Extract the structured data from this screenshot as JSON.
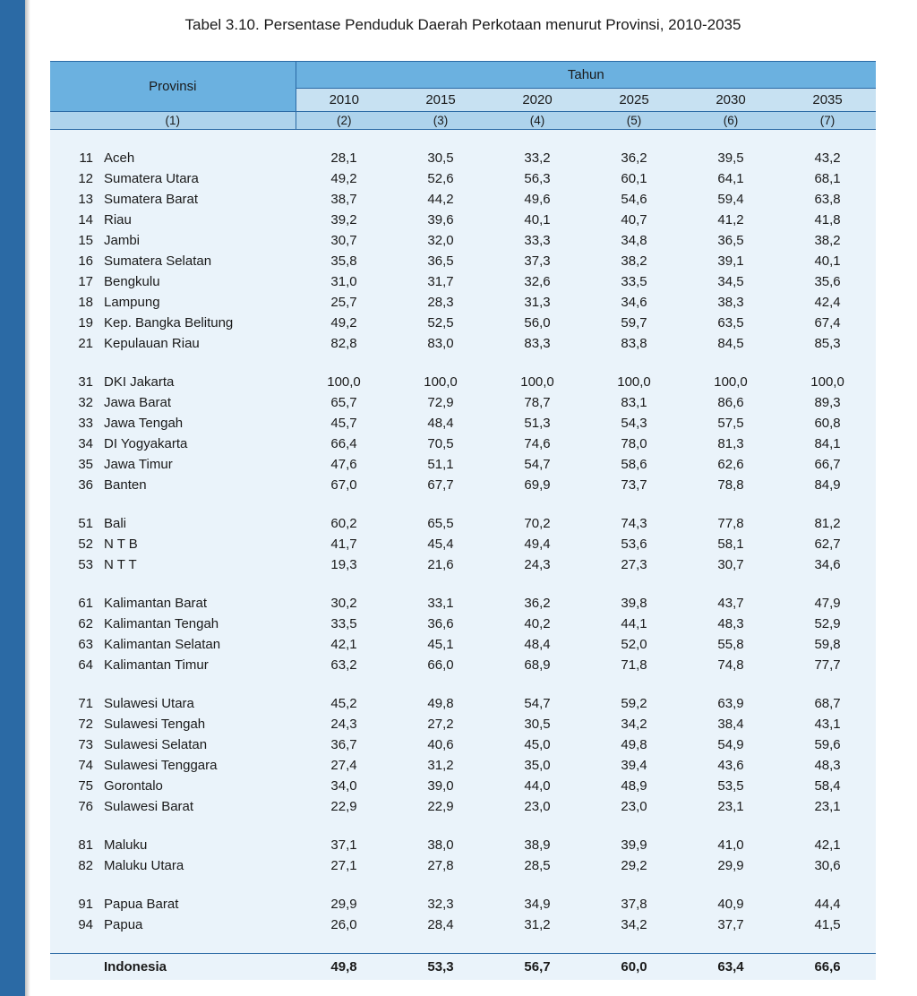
{
  "title": "Tabel 3.10. Persentase Penduduk Daerah Perkotaan menurut Provinsi, 2010-2035",
  "header": {
    "provinsi": "Provinsi",
    "tahun": "Tahun",
    "years": [
      "2010",
      "2015",
      "2020",
      "2025",
      "2030",
      "2035"
    ],
    "col_index": [
      "(1)",
      "(2)",
      "(3)",
      "(4)",
      "(5)",
      "(6)",
      "(7)"
    ]
  },
  "groups": [
    {
      "rows": [
        {
          "code": "11",
          "name": "Aceh",
          "vals": [
            "28,1",
            "30,5",
            "33,2",
            "36,2",
            "39,5",
            "43,2"
          ]
        },
        {
          "code": "12",
          "name": "Sumatera Utara",
          "vals": [
            "49,2",
            "52,6",
            "56,3",
            "60,1",
            "64,1",
            "68,1"
          ]
        },
        {
          "code": "13",
          "name": "Sumatera Barat",
          "vals": [
            "38,7",
            "44,2",
            "49,6",
            "54,6",
            "59,4",
            "63,8"
          ]
        },
        {
          "code": "14",
          "name": "Riau",
          "vals": [
            "39,2",
            "39,6",
            "40,1",
            "40,7",
            "41,2",
            "41,8"
          ]
        },
        {
          "code": "15",
          "name": "Jambi",
          "vals": [
            "30,7",
            "32,0",
            "33,3",
            "34,8",
            "36,5",
            "38,2"
          ]
        },
        {
          "code": "16",
          "name": "Sumatera Selatan",
          "vals": [
            "35,8",
            "36,5",
            "37,3",
            "38,2",
            "39,1",
            "40,1"
          ]
        },
        {
          "code": "17",
          "name": "Bengkulu",
          "vals": [
            "31,0",
            "31,7",
            "32,6",
            "33,5",
            "34,5",
            "35,6"
          ]
        },
        {
          "code": "18",
          "name": "Lampung",
          "vals": [
            "25,7",
            "28,3",
            "31,3",
            "34,6",
            "38,3",
            "42,4"
          ]
        },
        {
          "code": "19",
          "name": "Kep. Bangka Belitung",
          "vals": [
            "49,2",
            "52,5",
            "56,0",
            "59,7",
            "63,5",
            "67,4"
          ]
        },
        {
          "code": "21",
          "name": "Kepulauan Riau",
          "vals": [
            "82,8",
            "83,0",
            "83,3",
            "83,8",
            "84,5",
            "85,3"
          ]
        }
      ]
    },
    {
      "rows": [
        {
          "code": "31",
          "name": "DKI Jakarta",
          "vals": [
            "100,0",
            "100,0",
            "100,0",
            "100,0",
            "100,0",
            "100,0"
          ]
        },
        {
          "code": "32",
          "name": "Jawa Barat",
          "vals": [
            "65,7",
            "72,9",
            "78,7",
            "83,1",
            "86,6",
            "89,3"
          ]
        },
        {
          "code": "33",
          "name": "Jawa Tengah",
          "vals": [
            "45,7",
            "48,4",
            "51,3",
            "54,3",
            "57,5",
            "60,8"
          ]
        },
        {
          "code": "34",
          "name": "DI Yogyakarta",
          "vals": [
            "66,4",
            "70,5",
            "74,6",
            "78,0",
            "81,3",
            "84,1"
          ]
        },
        {
          "code": "35",
          "name": "Jawa Timur",
          "vals": [
            "47,6",
            "51,1",
            "54,7",
            "58,6",
            "62,6",
            "66,7"
          ]
        },
        {
          "code": "36",
          "name": "Banten",
          "vals": [
            "67,0",
            "67,7",
            "69,9",
            "73,7",
            "78,8",
            "84,9"
          ]
        }
      ]
    },
    {
      "rows": [
        {
          "code": "51",
          "name": "Bali",
          "vals": [
            "60,2",
            "65,5",
            "70,2",
            "74,3",
            "77,8",
            "81,2"
          ]
        },
        {
          "code": "52",
          "name": "N T B",
          "vals": [
            "41,7",
            "45,4",
            "49,4",
            "53,6",
            "58,1",
            "62,7"
          ]
        },
        {
          "code": "53",
          "name": "N T T",
          "vals": [
            "19,3",
            "21,6",
            "24,3",
            "27,3",
            "30,7",
            "34,6"
          ]
        }
      ]
    },
    {
      "rows": [
        {
          "code": "61",
          "name": "Kalimantan Barat",
          "vals": [
            "30,2",
            "33,1",
            "36,2",
            "39,8",
            "43,7",
            "47,9"
          ]
        },
        {
          "code": "62",
          "name": "Kalimantan Tengah",
          "vals": [
            "33,5",
            "36,6",
            "40,2",
            "44,1",
            "48,3",
            "52,9"
          ]
        },
        {
          "code": "63",
          "name": "Kalimantan Selatan",
          "vals": [
            "42,1",
            "45,1",
            "48,4",
            "52,0",
            "55,8",
            "59,8"
          ]
        },
        {
          "code": "64",
          "name": "Kalimantan Timur",
          "vals": [
            "63,2",
            "66,0",
            "68,9",
            "71,8",
            "74,8",
            "77,7"
          ]
        }
      ]
    },
    {
      "rows": [
        {
          "code": "71",
          "name": "Sulawesi Utara",
          "vals": [
            "45,2",
            "49,8",
            "54,7",
            "59,2",
            "63,9",
            "68,7"
          ]
        },
        {
          "code": "72",
          "name": "Sulawesi Tengah",
          "vals": [
            "24,3",
            "27,2",
            "30,5",
            "34,2",
            "38,4",
            "43,1"
          ]
        },
        {
          "code": "73",
          "name": "Sulawesi Selatan",
          "vals": [
            "36,7",
            "40,6",
            "45,0",
            "49,8",
            "54,9",
            "59,6"
          ]
        },
        {
          "code": "74",
          "name": "Sulawesi Tenggara",
          "vals": [
            "27,4",
            "31,2",
            "35,0",
            "39,4",
            "43,6",
            "48,3"
          ]
        },
        {
          "code": "75",
          "name": "Gorontalo",
          "vals": [
            "34,0",
            "39,0",
            "44,0",
            "48,9",
            "53,5",
            "58,4"
          ]
        },
        {
          "code": "76",
          "name": "Sulawesi Barat",
          "vals": [
            "22,9",
            "22,9",
            "23,0",
            "23,0",
            "23,1",
            "23,1"
          ]
        }
      ]
    },
    {
      "rows": [
        {
          "code": "81",
          "name": "Maluku",
          "vals": [
            "37,1",
            "38,0",
            "38,9",
            "39,9",
            "41,0",
            "42,1"
          ]
        },
        {
          "code": "82",
          "name": "Maluku Utara",
          "vals": [
            "27,1",
            "27,8",
            "28,5",
            "29,2",
            "29,9",
            "30,6"
          ]
        }
      ]
    },
    {
      "rows": [
        {
          "code": "91",
          "name": "Papua Barat",
          "vals": [
            "29,9",
            "32,3",
            "34,9",
            "37,8",
            "40,9",
            "44,4"
          ]
        },
        {
          "code": "94",
          "name": "Papua",
          "vals": [
            "26,0",
            "28,4",
            "31,2",
            "34,2",
            "37,7",
            "41,5"
          ]
        }
      ]
    }
  ],
  "total": {
    "name": "Indonesia",
    "vals": [
      "49,8",
      "53,3",
      "56,7",
      "60,0",
      "63,4",
      "66,6"
    ]
  },
  "colors": {
    "header_dark": "#6bb1e0",
    "header_mid": "#c7e1f2",
    "header_idx": "#aed3ec",
    "body_bg": "#eaf3fa",
    "border": "#2b6aa5",
    "strip": "#2b6aa5",
    "text": "#1a1a1a"
  }
}
